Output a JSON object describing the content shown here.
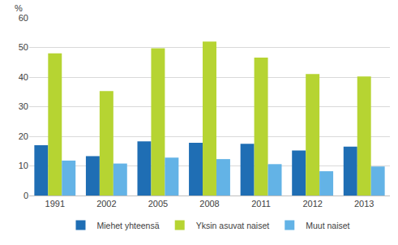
{
  "chart_data": {
    "type": "bar",
    "y_label": "%",
    "categories": [
      "1991",
      "2002",
      "2005",
      "2008",
      "2011",
      "2012",
      "2013"
    ],
    "series": [
      {
        "name": "Miehet yhteensä",
        "color": "#1f6eb4",
        "values": [
          17,
          13.3,
          18.3,
          17.8,
          17.5,
          15.2,
          16.5
        ]
      },
      {
        "name": "Yksin asuvat naiset",
        "color": "#b6d432",
        "values": [
          48,
          35.3,
          49.7,
          52,
          46.6,
          41,
          40.2
        ]
      },
      {
        "name": "Muut naiset",
        "color": "#63b3e6",
        "values": [
          11.8,
          10.8,
          12.8,
          12.3,
          10.6,
          8.2,
          9.8
        ]
      }
    ],
    "ylim": [
      0,
      60
    ],
    "yticks": [
      0,
      10,
      20,
      30,
      40,
      50,
      60
    ],
    "grid": true,
    "legend": "bottom"
  }
}
